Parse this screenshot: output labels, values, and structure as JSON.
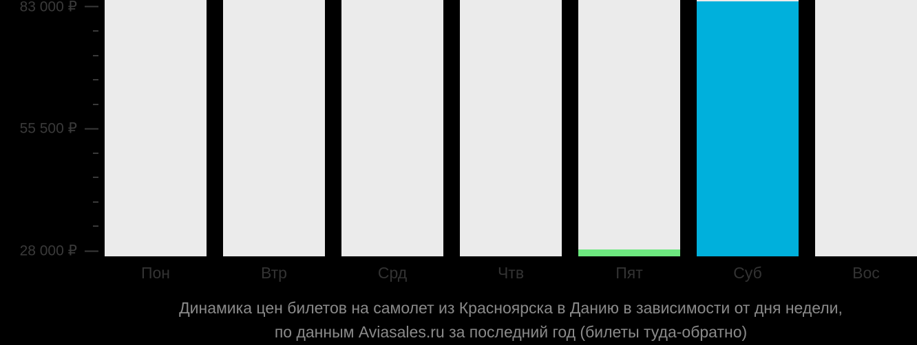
{
  "chart_data": {
    "type": "bar",
    "title": "Динамика цен билетов на самолет из Красноярска в Данию в зависимости от дня недели,",
    "subtitle": "по данным Aviasales.ru за последний год (билеты туда-обратно)",
    "categories": [
      "Пон",
      "Втр",
      "Срд",
      "Чтв",
      "Пят",
      "Суб",
      "Вос"
    ],
    "values": [
      null,
      null,
      null,
      null,
      28000,
      83000,
      null
    ],
    "bar_colors": [
      null,
      null,
      null,
      null,
      "#6de87f",
      "#00b0dc",
      null
    ],
    "y_tick_labels": [
      "83 000 ₽",
      "55 500 ₽",
      "28 000 ₽"
    ],
    "y_tick_values": [
      83000,
      55500,
      28000
    ],
    "ylim": [
      28000,
      83000
    ],
    "minor_ticks_between_majors": 4,
    "xlabel": "",
    "ylabel": "",
    "grid": false,
    "legend": false
  },
  "colors": {
    "background": "#000000",
    "column_background": "#ebebeb",
    "cheapest_bar": "#6de87f",
    "most_expensive_bar": "#00b0dc",
    "axis_text": "#3a3a3a",
    "day_label_text": "#333333",
    "caption_text": "#8a8a8a"
  }
}
